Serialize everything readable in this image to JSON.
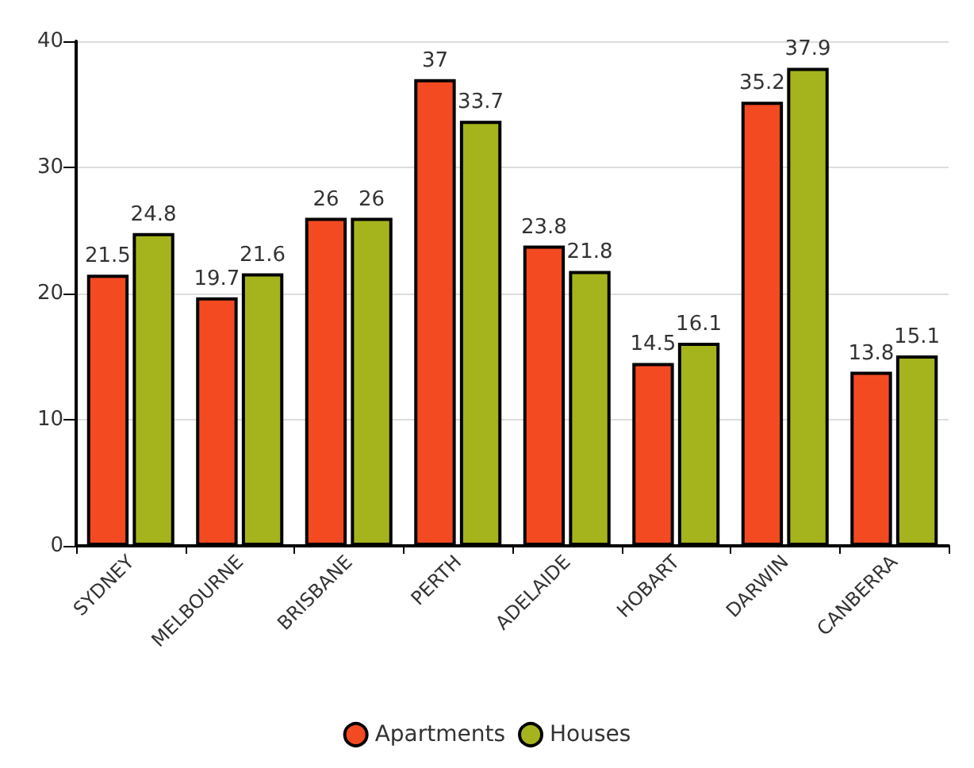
{
  "chart_data": {
    "type": "bar",
    "categories": [
      "SYDNEY",
      "MELBOURNE",
      "BRISBANE",
      "PERTH",
      "ADELAIDE",
      "HOBART",
      "DARWIN",
      "CANBERRA"
    ],
    "series": [
      {
        "name": "Apartments",
        "color": "#f44a22",
        "values": [
          21.5,
          19.7,
          26,
          37,
          23.8,
          14.5,
          35.2,
          13.8
        ]
      },
      {
        "name": "Houses",
        "color": "#a5b41c",
        "values": [
          24.8,
          21.6,
          26,
          33.7,
          21.8,
          16.1,
          37.9,
          15.1
        ]
      }
    ],
    "ylim": [
      0,
      40
    ],
    "yticks": [
      0,
      10,
      20,
      30,
      40
    ],
    "grid": "y",
    "legend": "bottom",
    "data_labels": true
  }
}
